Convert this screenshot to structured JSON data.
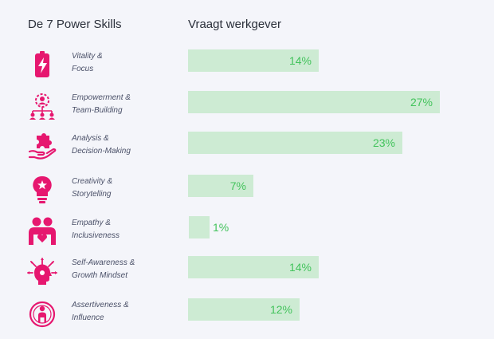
{
  "chart_data": {
    "type": "bar",
    "orientation": "horizontal",
    "header_left": "De 7 Power Skills",
    "header_right": "Vraagt werkgever",
    "categories": [
      [
        "Vitality &",
        "Focus"
      ],
      [
        "Empowerment &",
        "Team-Building"
      ],
      [
        "Analysis &",
        "Decision-Making"
      ],
      [
        "Creativity &",
        "Storytelling"
      ],
      [
        "Empathy &",
        "Inclusiveness"
      ],
      [
        "Self-Awareness &",
        "Growth Mindset"
      ],
      [
        "Assertiveness &",
        "Influence"
      ]
    ],
    "values": [
      14,
      27,
      23,
      7,
      1,
      14,
      12
    ],
    "value_labels": [
      "14%",
      "27%",
      "23%",
      "7%",
      "1%",
      "14%",
      "12%"
    ],
    "icons": [
      "battery-bolt-icon",
      "team-network-icon",
      "hand-puzzle-icon",
      "lightbulb-star-icon",
      "empathy-hug-icon",
      "head-radiate-icon",
      "target-person-icon"
    ],
    "colors": {
      "icon": "#e6176f",
      "bar": "#cdebd3",
      "value_text": "#43c35c",
      "background": "#f4f5fa"
    }
  }
}
